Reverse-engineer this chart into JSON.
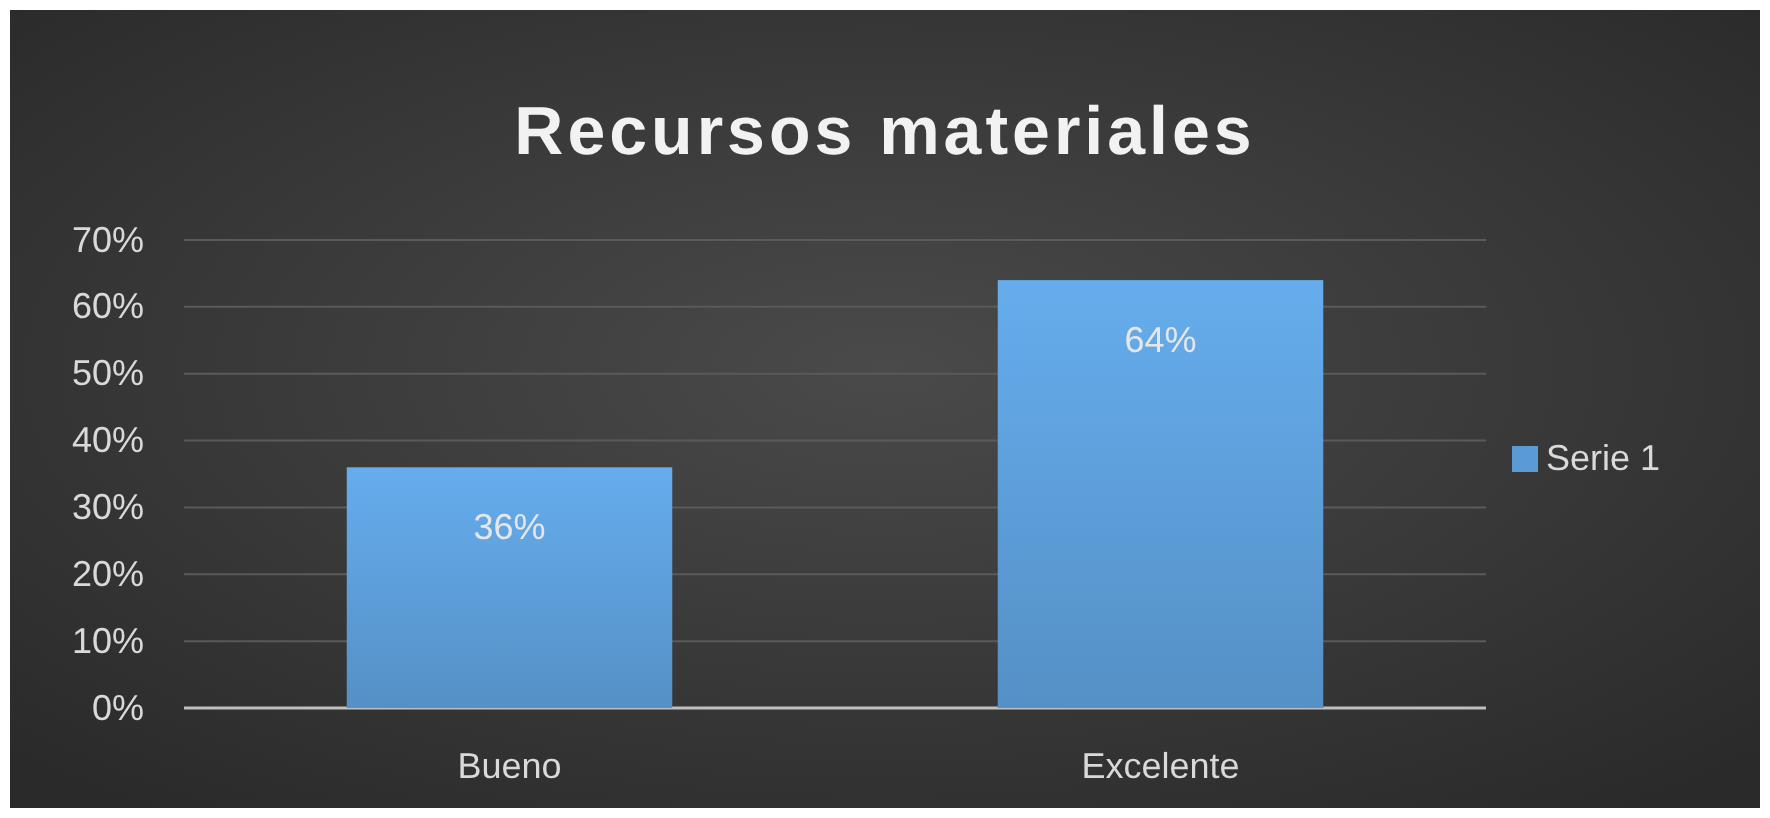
{
  "chart_data": {
    "type": "bar",
    "title": "Recursos materiales",
    "categories": [
      "Bueno",
      "Excelente"
    ],
    "series": [
      {
        "name": "Serie 1",
        "color": "#5b9bd5",
        "values": [
          36,
          64
        ]
      }
    ],
    "value_labels": [
      "36%",
      "64%"
    ],
    "ylim": [
      0,
      70
    ],
    "yticks": [
      {
        "value": 0,
        "label": "0%"
      },
      {
        "value": 10,
        "label": "10%"
      },
      {
        "value": 20,
        "label": "20%"
      },
      {
        "value": 30,
        "label": "30%"
      },
      {
        "value": 40,
        "label": "40%"
      },
      {
        "value": 50,
        "label": "50%"
      },
      {
        "value": 60,
        "label": "60%"
      },
      {
        "value": 70,
        "label": "70%"
      }
    ],
    "grid": "y",
    "legend": "right"
  }
}
